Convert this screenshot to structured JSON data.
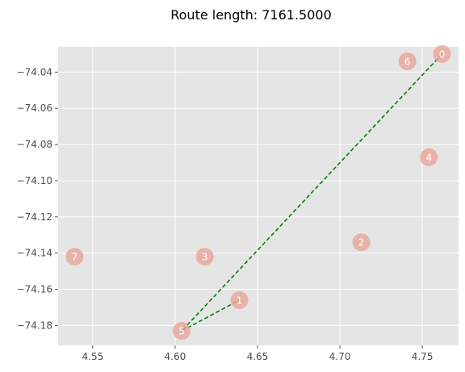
{
  "chart_data": {
    "type": "scatter",
    "title": "Route length: 7161.5000",
    "xlabel": "",
    "ylabel": "",
    "xlim": [
      4.529,
      4.772
    ],
    "ylim": [
      -74.191,
      -74.026
    ],
    "x_ticks": [
      4.55,
      4.6,
      4.65,
      4.7,
      4.75
    ],
    "x_tick_labels": [
      "4.55",
      "4.60",
      "4.65",
      "4.70",
      "4.75"
    ],
    "y_ticks": [
      -74.04,
      -74.06,
      -74.08,
      -74.1,
      -74.12,
      -74.14,
      -74.16,
      -74.18
    ],
    "y_tick_labels": [
      "−74.04",
      "−74.06",
      "−74.08",
      "−74.10",
      "−74.12",
      "−74.14",
      "−74.16",
      "−74.18"
    ],
    "grid": true,
    "points": [
      {
        "label": "0",
        "x": 4.762,
        "y": -74.03
      },
      {
        "label": "1",
        "x": 4.639,
        "y": -74.166
      },
      {
        "label": "2",
        "x": 4.713,
        "y": -74.134
      },
      {
        "label": "3",
        "x": 4.618,
        "y": -74.142
      },
      {
        "label": "4",
        "x": 4.754,
        "y": -74.087
      },
      {
        "label": "5",
        "x": 4.604,
        "y": -74.183
      },
      {
        "label": "6",
        "x": 4.741,
        "y": -74.034
      },
      {
        "label": "7",
        "x": 4.539,
        "y": -74.142
      }
    ],
    "route": [
      0,
      5,
      1
    ],
    "colors": {
      "background": "#e5e5e5",
      "grid": "#ffffff",
      "point": "#e8a598",
      "route": "#008000",
      "label": "#ffffff"
    }
  }
}
